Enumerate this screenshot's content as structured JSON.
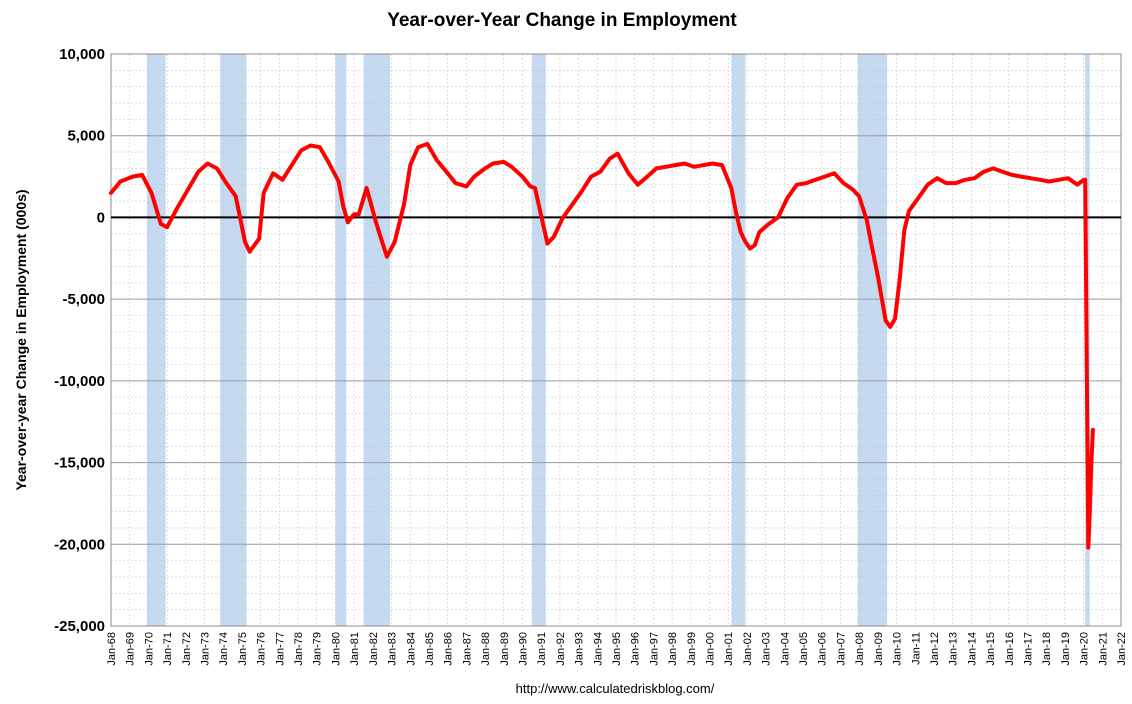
{
  "chart_data": {
    "type": "line",
    "title": "Year-over-Year Change in Employment",
    "ylabel": "Year-over-year Change in Employment (000s)",
    "xlabel": "",
    "source": "http://www.calculatedriskblog.com/",
    "ylim": [
      -25000,
      10000
    ],
    "y_ticks": [
      10000,
      5000,
      0,
      -5000,
      -10000,
      -15000,
      -20000,
      -25000
    ],
    "y_tick_labels": [
      "10,000",
      "5,000",
      "0",
      "-5,000",
      "-10,000",
      "-15,000",
      "-20,000",
      "-25,000"
    ],
    "xlim": [
      1968.0,
      2022.0
    ],
    "x_tick_labels": [
      "Jan-68",
      "Jan-69",
      "Jan-70",
      "Jan-71",
      "Jan-72",
      "Jan-73",
      "Jan-74",
      "Jan-75",
      "Jan-76",
      "Jan-77",
      "Jan-78",
      "Jan-79",
      "Jan-80",
      "Jan-81",
      "Jan-82",
      "Jan-83",
      "Jan-84",
      "Jan-85",
      "Jan-86",
      "Jan-87",
      "Jan-88",
      "Jan-89",
      "Jan-90",
      "Jan-91",
      "Jan-92",
      "Jan-93",
      "Jan-94",
      "Jan-95",
      "Jan-96",
      "Jan-97",
      "Jan-98",
      "Jan-99",
      "Jan-00",
      "Jan-01",
      "Jan-02",
      "Jan-03",
      "Jan-04",
      "Jan-05",
      "Jan-06",
      "Jan-07",
      "Jan-08",
      "Jan-09",
      "Jan-10",
      "Jan-11",
      "Jan-12",
      "Jan-13",
      "Jan-14",
      "Jan-15",
      "Jan-16",
      "Jan-17",
      "Jan-18",
      "Jan-19",
      "Jan-20",
      "Jan-21",
      "Jan-22"
    ],
    "grid": true,
    "series_color": "#ff0000",
    "recession_color": "#c5d9f1",
    "recessions": [
      [
        "1969-12",
        "1970-11"
      ],
      [
        "1973-11",
        "1975-03"
      ],
      [
        "1980-01",
        "1980-07"
      ],
      [
        "1981-07",
        "1982-11"
      ],
      [
        "1990-07",
        "1991-03"
      ],
      [
        "2001-03",
        "2001-11"
      ],
      [
        "2007-12",
        "2009-06"
      ],
      [
        "2020-02",
        "2020-04"
      ]
    ],
    "series": [
      {
        "x": [
          "1968-01",
          "1968-07",
          "1969-03",
          "1969-09",
          "1970-03",
          "1970-09",
          "1971-01",
          "1971-07",
          "1972-03",
          "1972-09",
          "1973-03",
          "1973-09",
          "1974-03",
          "1974-09",
          "1975-03",
          "1975-06",
          "1975-12",
          "1976-03",
          "1976-09",
          "1977-03",
          "1977-09",
          "1978-03",
          "1978-09",
          "1979-03",
          "1979-09",
          "1980-03",
          "1980-06",
          "1980-09",
          "1981-01",
          "1981-04",
          "1981-09",
          "1982-03",
          "1982-06",
          "1982-10",
          "1983-03",
          "1983-09",
          "1984-01",
          "1984-06",
          "1984-12",
          "1985-06",
          "1986-01",
          "1986-06",
          "1987-01",
          "1987-06",
          "1988-01",
          "1988-06",
          "1989-01",
          "1989-06",
          "1990-01",
          "1990-06",
          "1990-09",
          "1991-01",
          "1991-05",
          "1991-09",
          "1992-03",
          "1992-09",
          "1993-03",
          "1993-09",
          "1994-03",
          "1994-09",
          "1995-02",
          "1995-09",
          "1996-03",
          "1996-09",
          "1997-03",
          "1997-09",
          "1998-03",
          "1998-09",
          "1999-03",
          "1999-09",
          "2000-03",
          "2000-09",
          "2001-03",
          "2001-06",
          "2001-09",
          "2001-12",
          "2002-03",
          "2002-06",
          "2002-09",
          "2003-03",
          "2003-09",
          "2004-03",
          "2004-09",
          "2005-03",
          "2005-09",
          "2006-03",
          "2006-09",
          "2007-03",
          "2007-09",
          "2008-01",
          "2008-06",
          "2008-09",
          "2009-01",
          "2009-06",
          "2009-09",
          "2009-12",
          "2010-03",
          "2010-06",
          "2010-09",
          "2011-03",
          "2011-09",
          "2012-03",
          "2012-09",
          "2013-03",
          "2013-09",
          "2014-03",
          "2014-09",
          "2015-03",
          "2015-09",
          "2016-03",
          "2016-09",
          "2017-03",
          "2017-09",
          "2018-03",
          "2018-09",
          "2019-03",
          "2019-09",
          "2020-01",
          "2020-02",
          "2020-04",
          "2020-05",
          "2020-06",
          "2020-07"
        ],
        "values": [
          1500,
          2200,
          2500,
          2600,
          1500,
          -400,
          -600,
          500,
          1800,
          2800,
          3300,
          3000,
          2100,
          1300,
          -1500,
          -2100,
          -1300,
          1500,
          2700,
          2300,
          3200,
          4100,
          4400,
          4300,
          3300,
          2200,
          700,
          -300,
          200,
          200,
          1800,
          -300,
          -1200,
          -2400,
          -1500,
          800,
          3200,
          4300,
          4500,
          3500,
          2700,
          2100,
          1900,
          2500,
          3000,
          3300,
          3400,
          3100,
          2500,
          1900,
          1800,
          100,
          -1600,
          -1200,
          0,
          800,
          1600,
          2500,
          2800,
          3600,
          3900,
          2700,
          2000,
          2500,
          3000,
          3100,
          3200,
          3300,
          3100,
          3200,
          3300,
          3200,
          1800,
          300,
          -900,
          -1500,
          -1900,
          -1700,
          -900,
          -400,
          0,
          1200,
          2000,
          2100,
          2300,
          2500,
          2700,
          2100,
          1700,
          1300,
          -200,
          -1700,
          -3600,
          -6300,
          -6700,
          -6200,
          -3800,
          -800,
          400,
          1200,
          2000,
          2400,
          2100,
          2100,
          2300,
          2400,
          2800,
          3000,
          2800,
          2600,
          2500,
          2400,
          2300,
          2200,
          2300,
          2400,
          2000,
          2300,
          2300,
          -20200,
          -18000,
          -15000,
          -13000
        ]
      }
    ]
  }
}
